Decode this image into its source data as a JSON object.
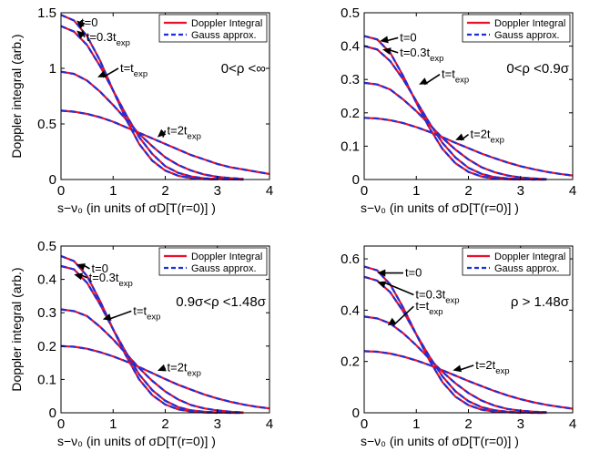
{
  "chart_data": [
    {
      "type": "line",
      "xlabel": "s−ν₀  (in units of σD[T(r=0)] )",
      "ylabel": "Doppler integral (arb.)",
      "xlim": [
        0,
        4
      ],
      "ylim": [
        0,
        1.5
      ],
      "xticks": [
        "0",
        "1",
        "2",
        "3",
        "4"
      ],
      "yticks": [
        "0",
        "0.5",
        "1",
        "1.5"
      ],
      "grid": false,
      "legend_position": "top-right",
      "legend": [
        "Doppler Integral",
        "Gauss approx."
      ],
      "region_label": "0<ρ <∞",
      "series": [
        {
          "label": "t=0",
          "x": [
            0,
            0.25,
            0.5,
            0.75,
            1.0,
            1.25,
            1.5,
            1.75,
            2.0,
            2.25,
            2.5,
            2.75,
            3.0
          ],
          "y": [
            1.48,
            1.43,
            1.29,
            1.07,
            0.8,
            0.54,
            0.32,
            0.17,
            0.08,
            0.034,
            0.013,
            0.004,
            0.001
          ]
        },
        {
          "label": "t=0.3t_exp",
          "x": [
            0,
            0.25,
            0.5,
            0.75,
            1.0,
            1.25,
            1.5,
            1.75,
            2.0,
            2.25,
            2.5,
            2.75,
            3.0,
            3.25,
            3.5
          ],
          "y": [
            1.38,
            1.33,
            1.21,
            1.02,
            0.8,
            0.58,
            0.38,
            0.23,
            0.12,
            0.06,
            0.027,
            0.011,
            0.004,
            0.001,
            0.0
          ]
        },
        {
          "label": "t=t_exp",
          "x": [
            0,
            0.25,
            0.5,
            0.75,
            1.0,
            1.25,
            1.5,
            1.75,
            2.0,
            2.25,
            2.5,
            2.75,
            3.0,
            3.25,
            3.5
          ],
          "y": [
            0.97,
            0.95,
            0.89,
            0.79,
            0.67,
            0.54,
            0.41,
            0.3,
            0.2,
            0.13,
            0.08,
            0.045,
            0.024,
            0.012,
            0.006
          ]
        },
        {
          "label": "t=2t_exp",
          "x": [
            0,
            0.25,
            0.5,
            0.75,
            1.0,
            1.25,
            1.5,
            1.75,
            2.0,
            2.25,
            2.5,
            2.75,
            3.0,
            3.25,
            3.5,
            3.75,
            4.0
          ],
          "y": [
            0.62,
            0.61,
            0.59,
            0.56,
            0.52,
            0.47,
            0.42,
            0.37,
            0.32,
            0.27,
            0.22,
            0.18,
            0.14,
            0.11,
            0.09,
            0.07,
            0.05
          ]
        }
      ],
      "annotations": [
        {
          "text": "t=0",
          "x": 0.35,
          "y": 1.41,
          "tx": 0.3,
          "ty": 1.43
        },
        {
          "text": "t=0.3t",
          "sub": "exp",
          "x": 0.45,
          "y": 1.28,
          "tx": 0.3,
          "ty": 1.34
        },
        {
          "text": "t=t",
          "sub": "exp",
          "x": 1.1,
          "y": 1.0,
          "tx": 0.7,
          "ty": 0.92
        },
        {
          "text": "t=2t",
          "sub": "exp",
          "x": 2.0,
          "y": 0.44,
          "tx": 1.85,
          "ty": 0.38
        }
      ]
    },
    {
      "type": "line",
      "xlabel": "s−ν₀  (in units of σD[T(r=0)] )",
      "ylabel": "",
      "xlim": [
        0,
        4
      ],
      "ylim": [
        0,
        0.5
      ],
      "xticks": [
        "0",
        "1",
        "2",
        "3",
        "4"
      ],
      "yticks": [
        "0",
        "0.1",
        "0.2",
        "0.3",
        "0.4",
        "0.5"
      ],
      "grid": false,
      "legend_position": "top-right",
      "legend": [
        "Doppler Integral",
        "Gauss approx."
      ],
      "region_label": "0<ρ <0.9σ",
      "series": [
        {
          "label": "t=0",
          "x": [
            0,
            0.25,
            0.5,
            0.75,
            1.0,
            1.25,
            1.5,
            1.75,
            2.0,
            2.25,
            2.5,
            2.75,
            3.0
          ],
          "y": [
            0.43,
            0.42,
            0.38,
            0.31,
            0.23,
            0.155,
            0.092,
            0.049,
            0.023,
            0.009,
            0.003,
            0.001,
            0.0
          ]
        },
        {
          "label": "t=0.3t_exp",
          "x": [
            0,
            0.25,
            0.5,
            0.75,
            1.0,
            1.25,
            1.5,
            1.75,
            2.0,
            2.25,
            2.5,
            2.75,
            3.0,
            3.25,
            3.5
          ],
          "y": [
            0.4,
            0.39,
            0.355,
            0.3,
            0.235,
            0.17,
            0.11,
            0.066,
            0.035,
            0.017,
            0.007,
            0.003,
            0.001,
            0.0,
            0.0
          ]
        },
        {
          "label": "t=t_exp",
          "x": [
            0,
            0.25,
            0.5,
            0.75,
            1.0,
            1.25,
            1.5,
            1.75,
            2.0,
            2.25,
            2.5,
            2.75,
            3.0,
            3.25,
            3.5
          ],
          "y": [
            0.29,
            0.285,
            0.27,
            0.24,
            0.205,
            0.165,
            0.125,
            0.09,
            0.06,
            0.037,
            0.022,
            0.012,
            0.006,
            0.003,
            0.001
          ]
        },
        {
          "label": "t=2t_exp",
          "x": [
            0,
            0.25,
            0.5,
            0.75,
            1.0,
            1.25,
            1.5,
            1.75,
            2.0,
            2.25,
            2.5,
            2.75,
            3.0,
            3.25,
            3.5,
            3.75,
            4.0
          ],
          "y": [
            0.185,
            0.183,
            0.178,
            0.169,
            0.157,
            0.143,
            0.127,
            0.11,
            0.094,
            0.078,
            0.064,
            0.051,
            0.04,
            0.031,
            0.023,
            0.017,
            0.012
          ]
        }
      ],
      "annotations": [
        {
          "text": "t=0",
          "x": 0.65,
          "y": 0.425,
          "tx": 0.3,
          "ty": 0.415
        },
        {
          "text": "t=0.3t",
          "sub": "exp",
          "x": 0.65,
          "y": 0.38,
          "tx": 0.35,
          "ty": 0.39
        },
        {
          "text": "t=t",
          "sub": "exp",
          "x": 1.45,
          "y": 0.315,
          "tx": 1.05,
          "ty": 0.285
        },
        {
          "text": "t=2t",
          "sub": "exp",
          "x": 2.0,
          "y": 0.135,
          "tx": 1.75,
          "ty": 0.118
        }
      ]
    },
    {
      "type": "line",
      "xlabel": "s−ν₀  (in units of σD[T(r=0)] )",
      "ylabel": "Doppler integral (arb.)",
      "xlim": [
        0,
        4
      ],
      "ylim": [
        0,
        0.5
      ],
      "xticks": [
        "0",
        "1",
        "2",
        "3",
        "4"
      ],
      "yticks": [
        "0",
        "0.1",
        "0.2",
        "0.3",
        "0.4",
        "0.5"
      ],
      "grid": false,
      "legend_position": "top-right",
      "legend": [
        "Doppler Integral",
        "Gauss approx."
      ],
      "region_label": "0.9σ<ρ <1.48σ",
      "series": [
        {
          "label": "t=0",
          "x": [
            0,
            0.25,
            0.5,
            0.75,
            1.0,
            1.25,
            1.5,
            1.75,
            2.0,
            2.25,
            2.5,
            2.75,
            3.0
          ],
          "y": [
            0.47,
            0.455,
            0.41,
            0.335,
            0.25,
            0.17,
            0.1,
            0.053,
            0.025,
            0.01,
            0.004,
            0.001,
            0.0
          ]
        },
        {
          "label": "t=0.3t_exp",
          "x": [
            0,
            0.25,
            0.5,
            0.75,
            1.0,
            1.25,
            1.5,
            1.75,
            2.0,
            2.25,
            2.5,
            2.75,
            3.0,
            3.25,
            3.5
          ],
          "y": [
            0.44,
            0.43,
            0.39,
            0.325,
            0.25,
            0.18,
            0.115,
            0.068,
            0.036,
            0.017,
            0.007,
            0.003,
            0.001,
            0.0,
            0.0
          ]
        },
        {
          "label": "t=t_exp",
          "x": [
            0,
            0.25,
            0.5,
            0.75,
            1.0,
            1.25,
            1.5,
            1.75,
            2.0,
            2.25,
            2.5,
            2.75,
            3.0,
            3.25,
            3.5
          ],
          "y": [
            0.31,
            0.305,
            0.29,
            0.258,
            0.22,
            0.177,
            0.134,
            0.096,
            0.064,
            0.04,
            0.023,
            0.013,
            0.007,
            0.003,
            0.001
          ]
        },
        {
          "label": "t=2t_exp",
          "x": [
            0,
            0.25,
            0.5,
            0.75,
            1.0,
            1.25,
            1.5,
            1.75,
            2.0,
            2.25,
            2.5,
            2.75,
            3.0,
            3.25,
            3.5,
            3.75,
            4.0
          ],
          "y": [
            0.2,
            0.198,
            0.192,
            0.182,
            0.169,
            0.154,
            0.137,
            0.119,
            0.101,
            0.084,
            0.069,
            0.055,
            0.043,
            0.033,
            0.025,
            0.018,
            0.013
          ]
        }
      ],
      "annotations": [
        {
          "text": "t=0",
          "x": 0.55,
          "y": 0.432,
          "tx": 0.3,
          "ty": 0.445
        },
        {
          "text": "t=0.3t",
          "sub": "exp",
          "x": 0.5,
          "y": 0.405,
          "tx": 0.25,
          "ty": 0.415
        },
        {
          "text": "t=t",
          "sub": "exp",
          "x": 1.35,
          "y": 0.305,
          "tx": 0.8,
          "ty": 0.28
        },
        {
          "text": "t=2t",
          "sub": "exp",
          "x": 2.0,
          "y": 0.135,
          "tx": 1.85,
          "ty": 0.126
        }
      ]
    },
    {
      "type": "line",
      "xlabel": "s−ν₀  (in units of σD[T(r=0)] )",
      "ylabel": "",
      "xlim": [
        0,
        4
      ],
      "ylim": [
        0,
        0.65
      ],
      "xticks": [
        "0",
        "1",
        "2",
        "3",
        "4"
      ],
      "yticks": [
        "0",
        "0.2",
        "0.4",
        "0.6"
      ],
      "grid": false,
      "legend_position": "top-right",
      "legend": [
        "Doppler Integral",
        "Gauss approx."
      ],
      "region_label": "ρ > 1.48σ",
      "series": [
        {
          "label": "t=0",
          "x": [
            0,
            0.25,
            0.5,
            0.75,
            1.0,
            1.25,
            1.5,
            1.75,
            2.0,
            2.25,
            2.5,
            2.75,
            3.0
          ],
          "y": [
            0.57,
            0.555,
            0.5,
            0.41,
            0.305,
            0.205,
            0.12,
            0.063,
            0.03,
            0.012,
            0.005,
            0.002,
            0.0
          ]
        },
        {
          "label": "t=0.3t_exp",
          "x": [
            0,
            0.25,
            0.5,
            0.75,
            1.0,
            1.25,
            1.5,
            1.75,
            2.0,
            2.25,
            2.5,
            2.75,
            3.0,
            3.25,
            3.5
          ],
          "y": [
            0.53,
            0.515,
            0.47,
            0.395,
            0.305,
            0.22,
            0.142,
            0.084,
            0.045,
            0.022,
            0.01,
            0.004,
            0.001,
            0.0,
            0.0
          ]
        },
        {
          "label": "t=t_exp",
          "x": [
            0,
            0.25,
            0.5,
            0.75,
            1.0,
            1.25,
            1.5,
            1.75,
            2.0,
            2.25,
            2.5,
            2.75,
            3.0,
            3.25,
            3.5
          ],
          "y": [
            0.375,
            0.368,
            0.348,
            0.31,
            0.263,
            0.211,
            0.16,
            0.115,
            0.077,
            0.048,
            0.028,
            0.015,
            0.008,
            0.004,
            0.002
          ]
        },
        {
          "label": "t=2t_exp",
          "x": [
            0,
            0.25,
            0.5,
            0.75,
            1.0,
            1.25,
            1.5,
            1.75,
            2.0,
            2.25,
            2.5,
            2.75,
            3.0,
            3.25,
            3.5,
            3.75,
            4.0
          ],
          "y": [
            0.24,
            0.238,
            0.231,
            0.219,
            0.204,
            0.186,
            0.166,
            0.145,
            0.124,
            0.104,
            0.085,
            0.068,
            0.053,
            0.041,
            0.031,
            0.023,
            0.016
          ]
        }
      ],
      "annotations": [
        {
          "text": "t=0",
          "x": 0.75,
          "y": 0.545,
          "tx": 0.25,
          "ty": 0.545
        },
        {
          "text": "t=0.3t",
          "sub": "exp",
          "x": 0.95,
          "y": 0.46,
          "tx": 0.25,
          "ty": 0.51
        },
        {
          "text": "t=t",
          "sub": "exp",
          "x": 0.95,
          "y": 0.415,
          "tx": 0.45,
          "ty": 0.34
        },
        {
          "text": "t=2t",
          "sub": "exp",
          "x": 2.1,
          "y": 0.185,
          "tx": 1.7,
          "ty": 0.165
        }
      ]
    }
  ],
  "colors": {
    "exact": "#e8102a",
    "gauss": "#1f2fd6"
  }
}
